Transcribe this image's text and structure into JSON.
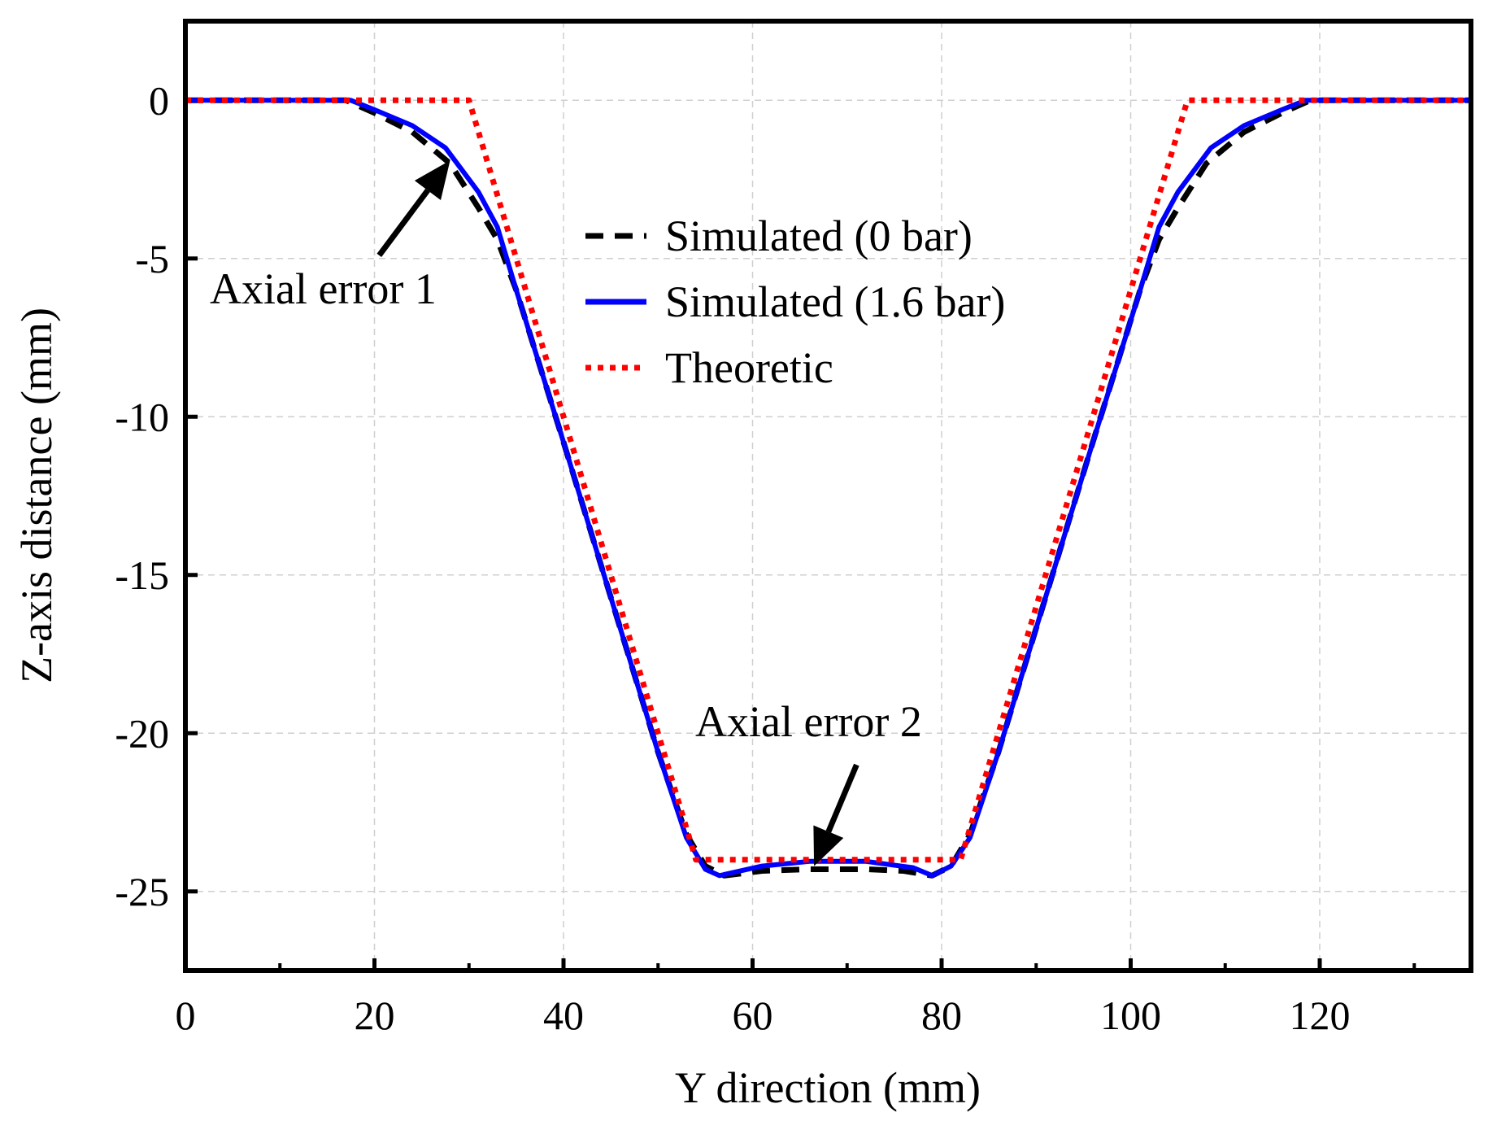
{
  "chart_data": {
    "type": "line",
    "xlabel": "Y direction (mm)",
    "ylabel": "Z-axis distance (mm)",
    "xlim": [
      0,
      136
    ],
    "ylim": [
      -27.5,
      2.5
    ],
    "x_ticks": [
      0,
      20,
      40,
      60,
      80,
      100,
      120
    ],
    "y_ticks": [
      0,
      -5,
      -10,
      -15,
      -20,
      -25
    ],
    "x_minor_step": 10,
    "y_minor_step": 2.5,
    "grid": true,
    "legend_position": "upper-center",
    "series": [
      {
        "name": "Simulated (0 bar)",
        "color": "#000000",
        "style": "dashed",
        "points": [
          [
            0,
            0
          ],
          [
            17,
            0
          ],
          [
            20,
            -0.4
          ],
          [
            24,
            -1.0
          ],
          [
            28,
            -2.0
          ],
          [
            31,
            -3.4
          ],
          [
            33,
            -4.4
          ],
          [
            35,
            -6.0
          ],
          [
            40,
            -10.8
          ],
          [
            45,
            -15.7
          ],
          [
            50,
            -20.6
          ],
          [
            53,
            -23.2
          ],
          [
            55,
            -24.2
          ],
          [
            57,
            -24.5
          ],
          [
            61,
            -24.35
          ],
          [
            66,
            -24.3
          ],
          [
            72,
            -24.3
          ],
          [
            76,
            -24.35
          ],
          [
            79,
            -24.5
          ],
          [
            81,
            -24.2
          ],
          [
            83,
            -23.2
          ],
          [
            86,
            -20.6
          ],
          [
            91,
            -15.7
          ],
          [
            96,
            -10.8
          ],
          [
            101,
            -6.0
          ],
          [
            103,
            -4.4
          ],
          [
            105,
            -3.4
          ],
          [
            108,
            -2.0
          ],
          [
            112,
            -1.0
          ],
          [
            116,
            -0.4
          ],
          [
            119,
            0
          ],
          [
            136,
            0
          ]
        ]
      },
      {
        "name": "Simulated (1.6 bar)",
        "color": "#0000ff",
        "style": "solid",
        "points": [
          [
            0,
            0
          ],
          [
            17.5,
            0
          ],
          [
            20,
            -0.3
          ],
          [
            24,
            -0.8
          ],
          [
            27.5,
            -1.5
          ],
          [
            31,
            -2.9
          ],
          [
            33,
            -4.0
          ],
          [
            35,
            -6.0
          ],
          [
            40,
            -10.8
          ],
          [
            45,
            -15.7
          ],
          [
            50,
            -20.6
          ],
          [
            53,
            -23.3
          ],
          [
            55,
            -24.3
          ],
          [
            56.5,
            -24.5
          ],
          [
            61,
            -24.2
          ],
          [
            66,
            -24.05
          ],
          [
            72,
            -24.05
          ],
          [
            77,
            -24.25
          ],
          [
            79,
            -24.5
          ],
          [
            81,
            -24.2
          ],
          [
            83,
            -23.3
          ],
          [
            86,
            -20.6
          ],
          [
            91,
            -15.7
          ],
          [
            96,
            -10.8
          ],
          [
            101,
            -6.0
          ],
          [
            103,
            -4.0
          ],
          [
            105,
            -2.9
          ],
          [
            108.5,
            -1.5
          ],
          [
            112,
            -0.8
          ],
          [
            116,
            -0.3
          ],
          [
            118.5,
            0
          ],
          [
            136,
            0
          ]
        ]
      },
      {
        "name": "Theoretic",
        "color": "#ff0000",
        "style": "dotted",
        "points": [
          [
            0,
            0
          ],
          [
            30,
            0
          ],
          [
            54,
            -24
          ],
          [
            82,
            -24
          ],
          [
            106,
            0
          ],
          [
            136,
            0
          ]
        ]
      }
    ],
    "annotations": [
      {
        "text": "Axial error 1",
        "target": [
          28,
          -1.9
        ],
        "arrow_from": [
          20.5,
          -4.9
        ]
      },
      {
        "text": "Axial error 2",
        "target": [
          66.5,
          -24.2
        ],
        "arrow_from": [
          71,
          -21.0
        ]
      }
    ]
  }
}
